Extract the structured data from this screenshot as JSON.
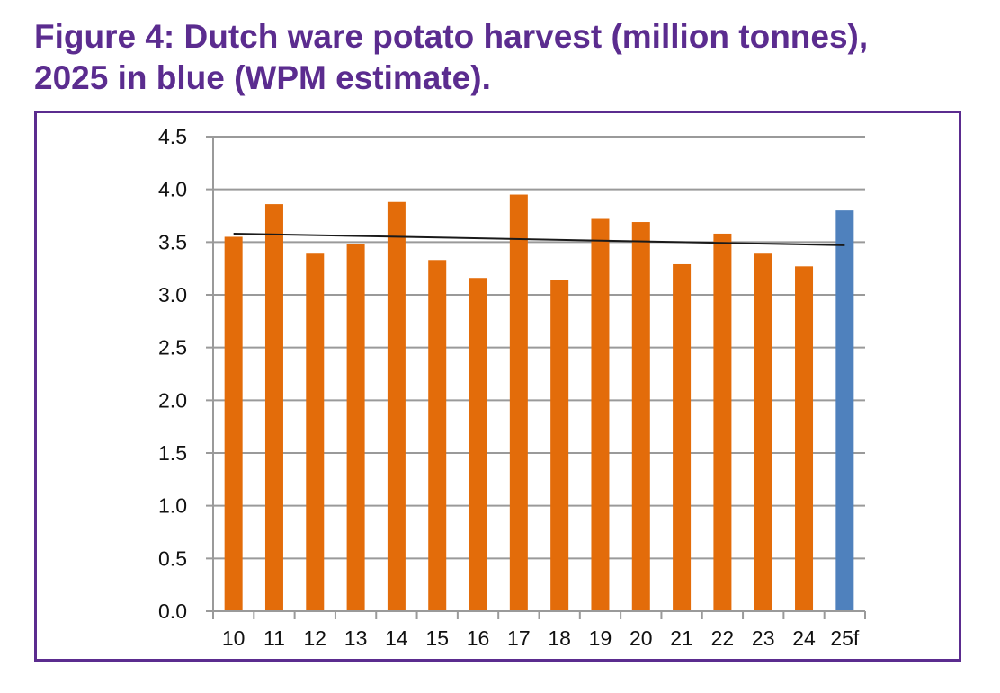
{
  "title": {
    "line1": "Figure 4: Dutch ware potato harvest (million tonnes),",
    "line2": "2025 in blue (WPM estimate)."
  },
  "colors": {
    "title": "#5b2c8f",
    "frame": "#5b2c8f",
    "bar_actual": "#e36c0a",
    "bar_forecast": "#4f81bd",
    "trendline": "#1a1a1a",
    "gridline": "#9a9a9a"
  },
  "chart_data": {
    "type": "bar",
    "title": "Figure 4: Dutch ware potato harvest (million tonnes), 2025 in blue (WPM estimate).",
    "xlabel": "",
    "ylabel": "",
    "categories": [
      "10",
      "11",
      "12",
      "13",
      "14",
      "15",
      "16",
      "17",
      "18",
      "19",
      "20",
      "21",
      "22",
      "23",
      "24",
      "25f"
    ],
    "values": [
      3.55,
      3.86,
      3.39,
      3.48,
      3.88,
      3.33,
      3.16,
      3.95,
      3.14,
      3.72,
      3.69,
      3.29,
      3.58,
      3.39,
      3.27,
      3.8
    ],
    "forecast_categories": [
      "25f"
    ],
    "ylim": [
      0,
      4.5
    ],
    "yticks": [
      "0.0",
      "0.5",
      "1.0",
      "1.5",
      "2.0",
      "2.5",
      "3.0",
      "3.5",
      "4.0",
      "4.5"
    ],
    "ytick_values": [
      0,
      0.5,
      1.0,
      1.5,
      2.0,
      2.5,
      3.0,
      3.5,
      4.0,
      4.5
    ],
    "grid": true,
    "legend": "none",
    "trendline": {
      "type": "linear",
      "start_value": 3.58,
      "end_value": 3.47
    }
  }
}
